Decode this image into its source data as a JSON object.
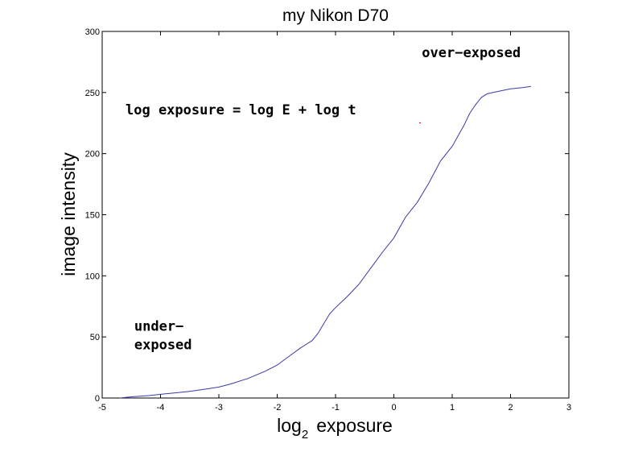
{
  "chart_data": {
    "type": "line",
    "title": "my Nikon D70",
    "xlabel_main": "log",
    "xlabel_sub": "2",
    "xlabel_rest": "exposure",
    "ylabel": "image intensity",
    "xlim": [
      -5,
      3
    ],
    "ylim": [
      0,
      300
    ],
    "xticks": [
      -5,
      -4,
      -3,
      -2,
      -1,
      0,
      1,
      2,
      3
    ],
    "yticks": [
      0,
      50,
      100,
      150,
      200,
      250,
      300
    ],
    "xtick_labels": [
      "-5",
      "-4",
      "-3",
      "-2",
      "-1",
      "0",
      "1",
      "2",
      "3"
    ],
    "ytick_labels": [
      "0",
      "50",
      "100",
      "150",
      "200",
      "250",
      "300"
    ],
    "grid": false,
    "line_color": "#3a3aa8",
    "series": [
      {
        "x": [
          -4.7,
          -4.5,
          -4.2,
          -4.0,
          -3.7,
          -3.5,
          -3.2,
          -3.0,
          -2.8,
          -2.5,
          -2.2,
          -2.0,
          -1.8,
          -1.6,
          -1.4,
          -1.3,
          -1.2,
          -1.1,
          -1.0,
          -0.8,
          -0.6,
          -0.4,
          -0.2,
          0.0,
          0.2,
          0.4,
          0.6,
          0.8,
          1.0,
          1.2,
          1.3,
          1.4,
          1.5,
          1.6,
          1.8,
          2.0,
          2.2,
          2.35
        ],
        "y": [
          0,
          1,
          2,
          3,
          4.5,
          5.5,
          7.5,
          9,
          11.5,
          16,
          22,
          27,
          34,
          41,
          47,
          53,
          61,
          69,
          74,
          83,
          93,
          106,
          119,
          131,
          148,
          160,
          176,
          194,
          206,
          223,
          233,
          240,
          246,
          249,
          251,
          253,
          254,
          255
        ]
      }
    ],
    "annotations": [
      {
        "text": "over−exposed",
        "x": 0.48,
        "y": 279
      },
      {
        "text": "log exposure = log E + log t",
        "x": -4.6,
        "y": 232
      },
      {
        "text": "under−",
        "x": -4.45,
        "y": 55
      },
      {
        "text": "exposed",
        "x": -4.45,
        "y": 40
      }
    ]
  }
}
